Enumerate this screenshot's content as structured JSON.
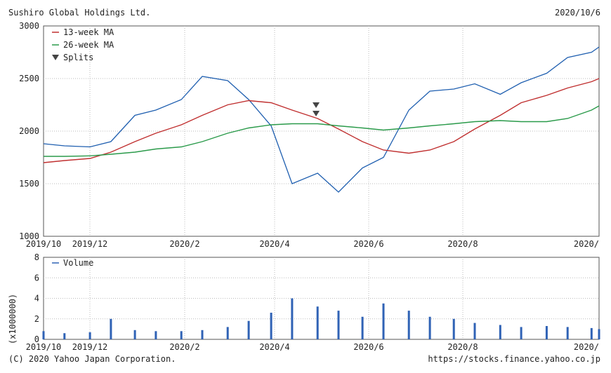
{
  "header": {
    "company": "Sushiro Global Holdings Ltd.",
    "date": "2020/10/6"
  },
  "footer": {
    "copyright": "(C) 2020 Yahoo Japan Corporation.",
    "url": "https://stocks.finance.yahoo.co.jp"
  },
  "colors": {
    "price": "#1f5fb0",
    "ma13": "#c03030",
    "ma26": "#2a9a4a",
    "volume": "#2f62b5",
    "grid": "#bbbbbb",
    "frame": "#555555"
  },
  "chart_data": [
    {
      "type": "line",
      "x_tick_labels": [
        "2019/10",
        "2019/12",
        "2020/2",
        "2020/4",
        "2020/6",
        "2020/8",
        "2020/"
      ],
      "y_ticks": [
        1000,
        1500,
        2000,
        2500,
        3000
      ],
      "ylim": [
        1000,
        3000
      ],
      "legend": [
        "13-week MA",
        "26-week MA",
        "Splits"
      ],
      "legend_placement": "top-left",
      "grid": true,
      "x_dates": [
        "2019/10/1",
        "2019/10/15",
        "2019/11/1",
        "2019/11/15",
        "2019/12/1",
        "2019/12/15",
        "2020/1/1",
        "2020/1/15",
        "2020/2/1",
        "2020/2/15",
        "2020/3/1",
        "2020/3/15",
        "2020/4/1",
        "2020/4/15",
        "2020/5/1",
        "2020/5/15",
        "2020/6/1",
        "2020/6/15",
        "2020/7/1",
        "2020/7/15",
        "2020/8/1",
        "2020/8/15",
        "2020/9/1",
        "2020/9/15",
        "2020/10/1",
        "2020/10/6"
      ],
      "series": [
        {
          "key": "price",
          "values": [
            1880,
            1860,
            1850,
            1900,
            2150,
            2200,
            2300,
            2520,
            2480,
            2300,
            2050,
            1500,
            1600,
            1420,
            1650,
            1750,
            2200,
            2380,
            2400,
            2450,
            2350,
            2460,
            2550,
            2700,
            2750,
            2800
          ]
        },
        {
          "key": "ma13",
          "name": "13-week MA",
          "values": [
            1700,
            1720,
            1740,
            1800,
            1900,
            1980,
            2060,
            2150,
            2250,
            2290,
            2270,
            2200,
            2120,
            2020,
            1900,
            1820,
            1790,
            1820,
            1900,
            2020,
            2150,
            2270,
            2340,
            2410,
            2470,
            2500
          ]
        },
        {
          "key": "ma26",
          "name": "26-week MA",
          "values": [
            1760,
            1760,
            1765,
            1780,
            1800,
            1830,
            1850,
            1900,
            1980,
            2030,
            2060,
            2070,
            2070,
            2050,
            2030,
            2010,
            2030,
            2050,
            2070,
            2090,
            2100,
            2090,
            2090,
            2120,
            2200,
            2240
          ]
        }
      ],
      "splits": [
        "2020/3/31"
      ]
    },
    {
      "type": "bar",
      "legend": [
        "Volume"
      ],
      "legend_placement": "top-left",
      "y_ticks": [
        0,
        2,
        4,
        6,
        8
      ],
      "ylim": [
        0,
        8
      ],
      "ylabel": "(x1000000)",
      "x_tick_labels": [
        "2019/10",
        "2019/12",
        "2020/2",
        "2020/4",
        "2020/6",
        "2020/8",
        "2020/"
      ],
      "x_dates": [
        "2019/10/1",
        "2019/10/15",
        "2019/11/1",
        "2019/11/15",
        "2019/12/1",
        "2019/12/15",
        "2020/1/1",
        "2020/1/15",
        "2020/2/1",
        "2020/2/15",
        "2020/3/1",
        "2020/3/15",
        "2020/4/1",
        "2020/4/15",
        "2020/5/1",
        "2020/5/15",
        "2020/6/1",
        "2020/6/15",
        "2020/7/1",
        "2020/7/15",
        "2020/8/1",
        "2020/8/15",
        "2020/9/1",
        "2020/9/15",
        "2020/10/1",
        "2020/10/6"
      ],
      "values": [
        0.8,
        0.6,
        0.7,
        2.0,
        0.9,
        0.8,
        0.8,
        0.9,
        1.2,
        1.8,
        2.6,
        4.0,
        3.2,
        2.8,
        2.2,
        3.5,
        2.8,
        2.2,
        2.0,
        1.6,
        1.4,
        1.2,
        1.3,
        1.2,
        1.1,
        1.0
      ]
    }
  ]
}
